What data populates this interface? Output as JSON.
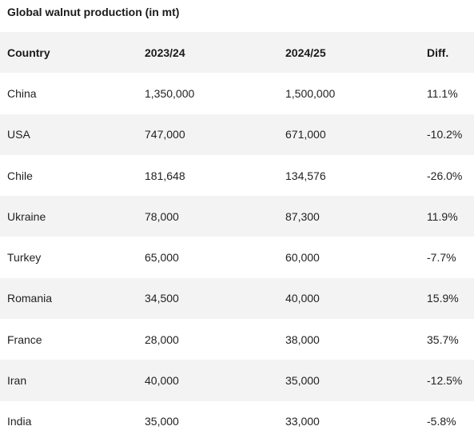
{
  "title": "Global walnut production (in mt)",
  "columns": [
    "Country",
    "2023/24",
    "2024/25",
    "Diff."
  ],
  "rows": [
    [
      "China",
      "1,350,000",
      "1,500,000",
      "11.1%"
    ],
    [
      "USA",
      "747,000",
      "671,000",
      "-10.2%"
    ],
    [
      "Chile",
      "181,648",
      "134,576",
      "-26.0%"
    ],
    [
      "Ukraine",
      "78,000",
      "87,300",
      "11.9%"
    ],
    [
      "Turkey",
      "65,000",
      "60,000",
      "-7.7%"
    ],
    [
      "Romania",
      "34,500",
      "40,000",
      "15.9%"
    ],
    [
      "France",
      "28,000",
      "38,000",
      "35.7%"
    ],
    [
      "Iran",
      "40,000",
      "35,000",
      "-12.5%"
    ],
    [
      "India",
      "35,000",
      "33,000",
      "-5.8%"
    ]
  ]
}
